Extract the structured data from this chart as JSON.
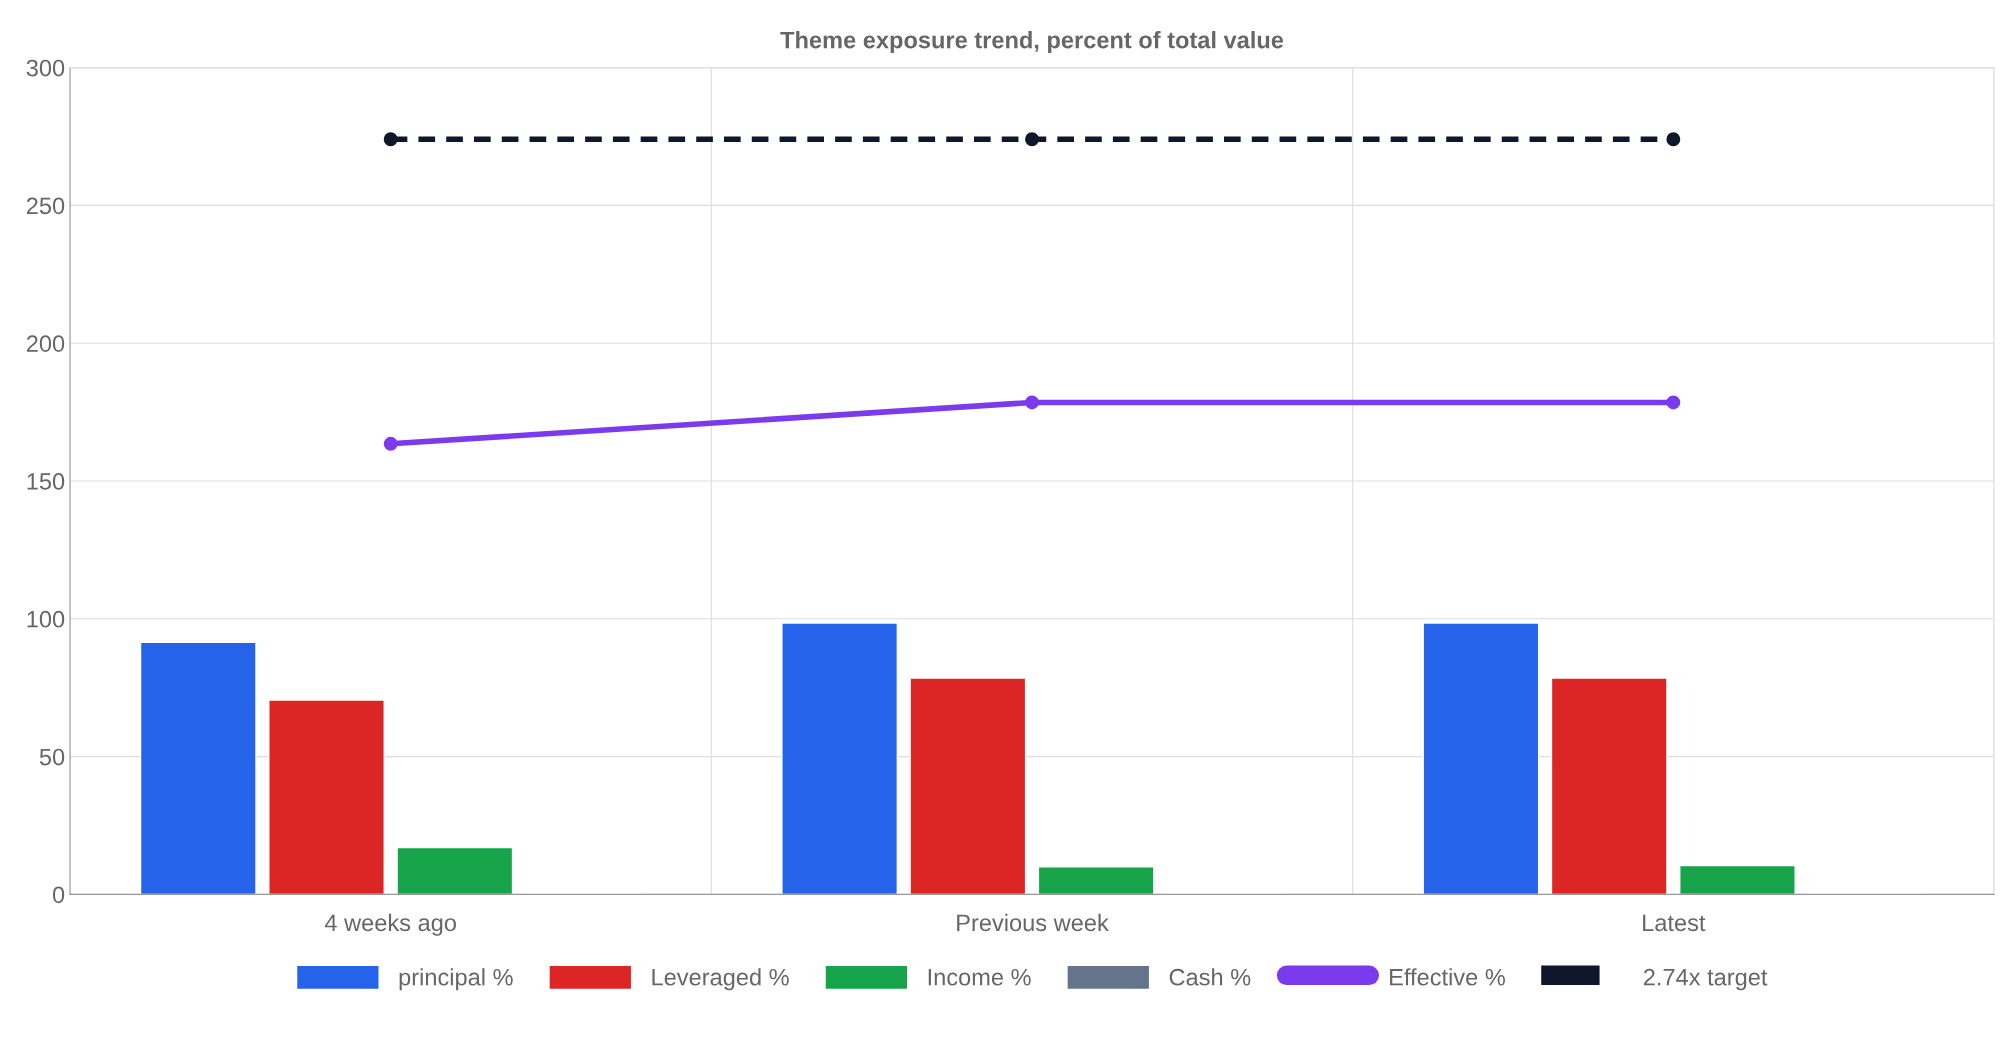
{
  "chart_data": {
    "type": "bar",
    "title": "Theme exposure trend, percent of total value",
    "categories": [
      "4 weeks ago",
      "Previous week",
      "Latest"
    ],
    "series": [
      {
        "name": "principal %",
        "color": "#2563eb",
        "values": [
          91.5,
          98.5,
          98.5
        ]
      },
      {
        "name": "Leveraged %",
        "color": "#dc2626",
        "values": [
          70.5,
          78.5,
          78.5
        ]
      },
      {
        "name": "Income %",
        "color": "#16a34a",
        "values": [
          17,
          10,
          10.5
        ]
      },
      {
        "name": "Cash %",
        "color": "#64748b",
        "values": [
          0.5,
          0.5,
          0.5
        ]
      },
      {
        "name": "Effective %",
        "color": "#7c3aed",
        "type": "line",
        "marker": "circle",
        "line_style": "solid",
        "values": [
          163.5,
          178.5,
          178.5
        ]
      },
      {
        "name": "2.74x target",
        "color": "#0f172a",
        "type": "line",
        "marker": "circle",
        "line_style": "dashed",
        "values": [
          274,
          274,
          274
        ]
      }
    ],
    "ylim": [
      0,
      300
    ],
    "yticks": [
      0,
      50,
      100,
      150,
      200,
      250,
      300
    ],
    "grid": true,
    "legend": "bottom"
  }
}
